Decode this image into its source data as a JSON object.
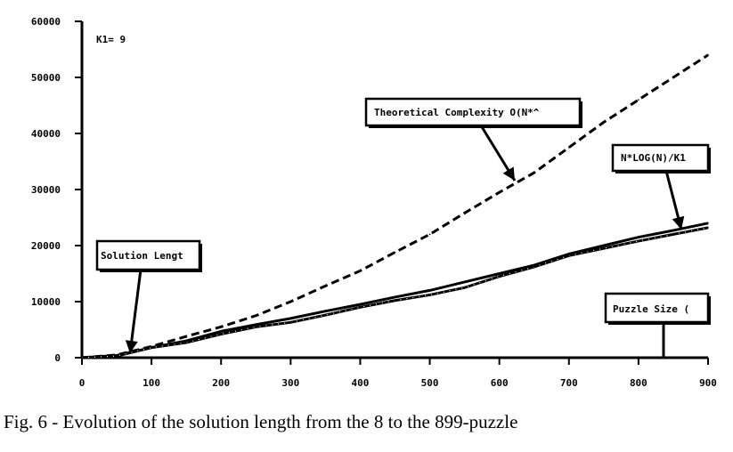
{
  "caption": "Fig. 6 - Evolution of the solution length from the 8 to the 899-puzzle",
  "chart_data": {
    "type": "line",
    "xlim": [
      0,
      900
    ],
    "ylim": [
      0,
      60000
    ],
    "x_ticks": [
      0,
      100,
      200,
      300,
      400,
      500,
      600,
      700,
      800,
      900
    ],
    "y_ticks": [
      0,
      10000,
      20000,
      30000,
      40000,
      50000,
      60000
    ],
    "grid": false,
    "corner_label": "K1= 9",
    "series": [
      {
        "style": "dashed",
        "x": [
          0,
          50,
          100,
          150,
          200,
          250,
          300,
          350,
          400,
          450,
          500,
          550,
          600,
          650,
          700,
          750,
          800,
          850,
          900
        ],
        "values": [
          0,
          500,
          2000,
          3800,
          5500,
          7500,
          10000,
          12800,
          15500,
          18800,
          22000,
          25800,
          29500,
          33000,
          37500,
          42000,
          46000,
          50000,
          54000
        ]
      },
      {
        "style": "solid",
        "x": [
          0,
          50,
          100,
          150,
          200,
          250,
          300,
          350,
          400,
          450,
          500,
          550,
          600,
          650,
          700,
          750,
          800,
          850,
          900
        ],
        "values": [
          0,
          400,
          1800,
          3000,
          4700,
          5900,
          7000,
          8300,
          9500,
          10800,
          12000,
          13500,
          15000,
          16500,
          18500,
          20000,
          21500,
          22700,
          24000
        ]
      },
      {
        "style": "solid-dotted",
        "x": [
          0,
          50,
          100,
          150,
          200,
          250,
          300,
          350,
          400,
          450,
          500,
          550,
          600,
          650,
          700,
          750,
          800,
          850,
          900
        ],
        "values": [
          0,
          300,
          1800,
          2700,
          4200,
          5500,
          6300,
          7600,
          9000,
          10200,
          11200,
          12500,
          14500,
          16200,
          18200,
          19500,
          20800,
          22000,
          23200
        ]
      }
    ],
    "annotations": [
      {
        "text": "Theoretical Complexity O(N*^"
      },
      {
        "text": "N*LOG(N)/K1"
      },
      {
        "text": "Solution Lengt"
      },
      {
        "text": "Puzzle Size ("
      }
    ]
  }
}
